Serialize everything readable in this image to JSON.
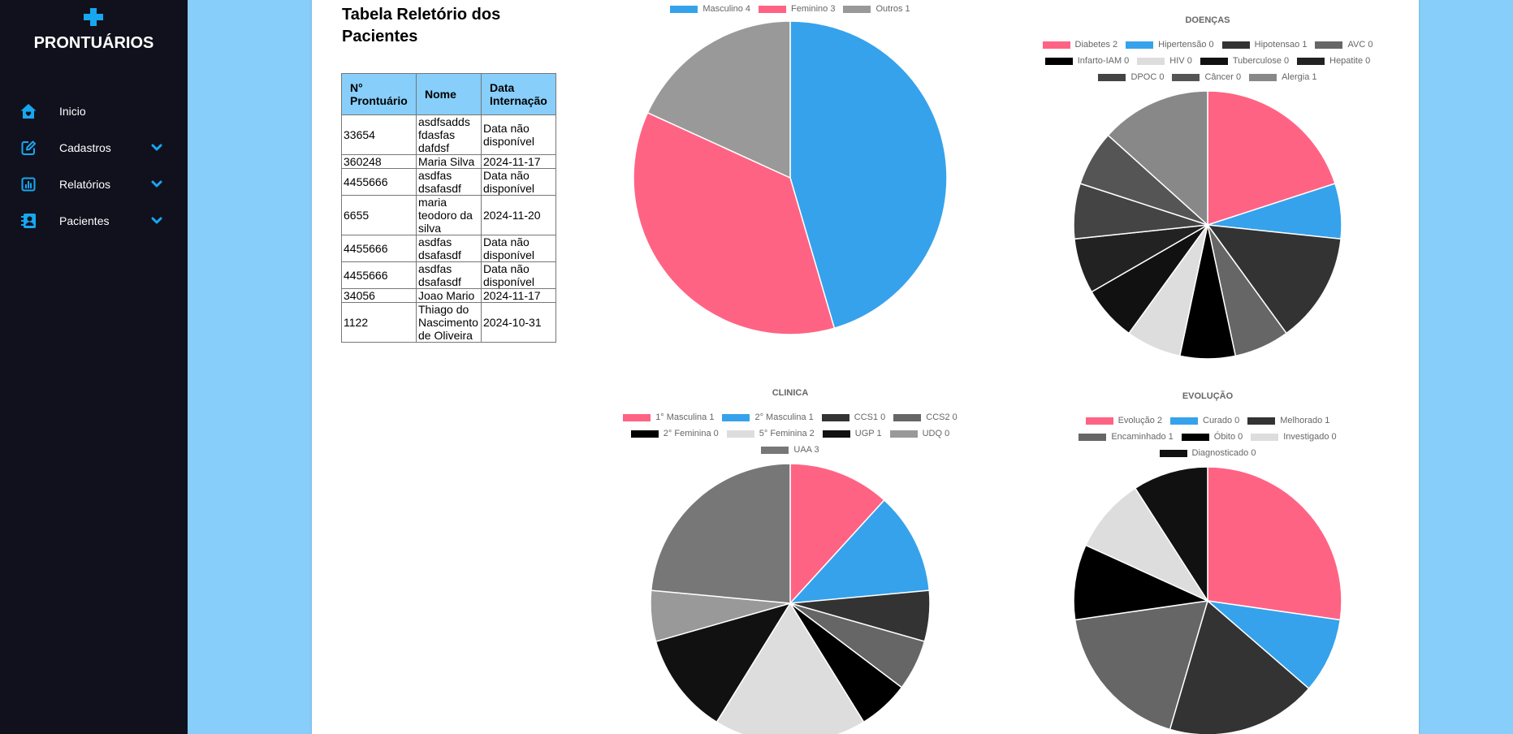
{
  "app": {
    "brand": "PRONTUÁRIOS",
    "brand_icon": "medical-cross-icon"
  },
  "sidebar": {
    "items": [
      {
        "label": "Inicio",
        "icon": "house-heart-icon"
      },
      {
        "label": "Cadastros",
        "icon": "pen-to-square-icon",
        "expand_icon": "chevron-down-icon"
      },
      {
        "label": "Relatórios",
        "icon": "chart-column-icon",
        "expand_icon": "chevron-down-icon"
      },
      {
        "label": "Pacientes",
        "icon": "address-book-icon",
        "expand_icon": "chevron-down-icon"
      }
    ]
  },
  "report": {
    "title": "Tabela Reletório dos Pacientes",
    "columns": [
      "N° Prontuário",
      "Nome",
      "Data Internação"
    ],
    "rows": [
      {
        "prontuario": "33654",
        "nome": "asdfsadds fdasfas dafdsf",
        "data_internacao": "Data não disponível"
      },
      {
        "prontuario": "360248",
        "nome": "Maria Silva",
        "data_internacao": "2024-11-17"
      },
      {
        "prontuario": "4455666",
        "nome": "asdfas dsafasdf",
        "data_internacao": "Data não disponível"
      },
      {
        "prontuario": "6655",
        "nome": "maria teodoro da silva",
        "data_internacao": "2024-11-20"
      },
      {
        "prontuario": "4455666",
        "nome": "asdfas dsafasdf",
        "data_internacao": "Data não disponível"
      },
      {
        "prontuario": "4455666",
        "nome": "asdfas dsafasdf",
        "data_internacao": "Data não disponível"
      },
      {
        "prontuario": "34056",
        "nome": "Joao Mario",
        "data_internacao": "2024-11-17"
      },
      {
        "prontuario": "1122",
        "nome": "Thiago do Nascimento de Oliveira",
        "data_internacao": "2024-10-31"
      }
    ]
  },
  "theme": {
    "page_background": "#87CEFA",
    "sidebar_background": "#11111D",
    "accent": "#17A7F0",
    "table_header_background": "#87CEFA"
  },
  "chart_data": [
    {
      "type": "pie",
      "title": "",
      "legend": "top",
      "labels": [
        "Masculino",
        "Feminino",
        "Outros"
      ],
      "legend_labels": [
        "Masculino 4",
        "Feminino 3",
        "Outros 1"
      ],
      "values": [
        5,
        4,
        2
      ],
      "colors": [
        "#36A2EB",
        "#FF6384",
        "#999999"
      ]
    },
    {
      "type": "pie",
      "title": "DOENÇAS",
      "legend": "top",
      "labels": [
        "Diabetes",
        "Hipertensão",
        "Hipotensao",
        "AVC",
        "Infarto-IAM",
        "HIV",
        "Tuberculose",
        "Hepatite",
        "DPOC",
        "Câncer",
        "Alergia"
      ],
      "legend_labels": [
        "Diabetes 2",
        "Hipertensão 0",
        "Hipotensao 1",
        "AVC 0",
        "Infarto-IAM 0",
        "HIV 0",
        "Tuberculose 0",
        "Hepatite 0",
        "DPOC 0",
        "Câncer 0",
        "Alergia 1"
      ],
      "values": [
        3,
        1,
        2,
        1,
        1,
        1,
        1,
        1,
        1,
        1,
        2
      ],
      "colors": [
        "#FF6384",
        "#36A2EB",
        "#333333",
        "#666666",
        "#000000",
        "#DDDDDD",
        "#111111",
        "#222222",
        "#444444",
        "#555555",
        "#888888"
      ]
    },
    {
      "type": "pie",
      "title": "CLINICA",
      "legend": "top",
      "labels": [
        "1° Masculina",
        "2° Masculina",
        "CCS1",
        "CCS2",
        "2° Feminina",
        "5° Feminina",
        "UGP",
        "UDQ",
        "UAA"
      ],
      "legend_labels": [
        "1° Masculina 1",
        "2° Masculina 1",
        "CCS1 0",
        "CCS2 0",
        "2° Feminina 0",
        "5° Feminina 2",
        "UGP 1",
        "UDQ 0",
        "UAA 3"
      ],
      "values": [
        2,
        2,
        1,
        1,
        1,
        3,
        2,
        1,
        4
      ],
      "colors": [
        "#FF6384",
        "#36A2EB",
        "#333333",
        "#666666",
        "#000000",
        "#DDDDDD",
        "#111111",
        "#999999",
        "#777777"
      ]
    },
    {
      "type": "pie",
      "title": "EVOLUÇÃO",
      "legend": "top",
      "labels": [
        "Evolução",
        "Curado",
        "Melhorado",
        "Encaminhado",
        "Óbito",
        "Investigado",
        "Diagnosticado"
      ],
      "legend_labels": [
        "Evolução 2",
        "Curado 0",
        "Melhorado 1",
        "Encaminhado 1",
        "Óbito 0",
        "Investigado 0",
        "Diagnosticado 0"
      ],
      "values": [
        3,
        1,
        2,
        2,
        1,
        1,
        1
      ],
      "colors": [
        "#FF6384",
        "#36A2EB",
        "#333333",
        "#666666",
        "#000000",
        "#DDDDDD",
        "#111111"
      ]
    }
  ]
}
